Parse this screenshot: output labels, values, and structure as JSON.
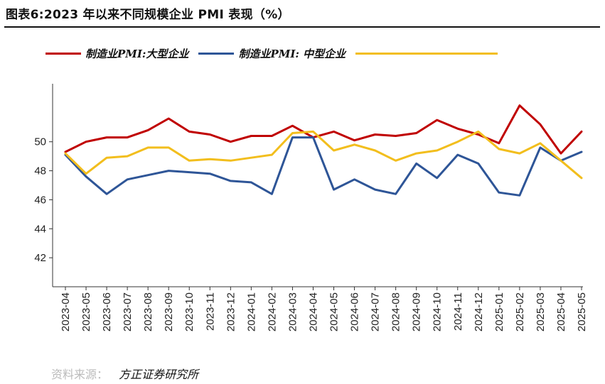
{
  "figure": {
    "title": "图表6:2023 年以来不同规模企业 PMI 表现（%）",
    "source_label": "资料来源：",
    "source": "方正证券研究所"
  },
  "chart_data": {
    "type": "line",
    "categories": [
      "2023-04",
      "2023-05",
      "2023-06",
      "2023-07",
      "2023-08",
      "2023-09",
      "2023-10",
      "2023-11",
      "2023-12",
      "2024-01",
      "2024-02",
      "2024-03",
      "2024-04",
      "2024-05",
      "2024-06",
      "2024-07",
      "2024-08",
      "2024-09",
      "2024-10",
      "2024-11",
      "2024-12",
      "2025-01",
      "2025-02",
      "2025-03",
      "2025-04",
      "2025-05"
    ],
    "series": [
      {
        "name": "制造业PMI:大型企业",
        "color": "#C00000",
        "values": [
          49.3,
          50.0,
          50.3,
          50.3,
          50.8,
          51.6,
          50.7,
          50.5,
          50.0,
          50.4,
          50.4,
          51.1,
          50.3,
          50.7,
          50.1,
          50.5,
          50.4,
          50.6,
          51.5,
          50.9,
          50.5,
          49.9,
          52.5,
          51.2,
          49.2,
          50.7
        ]
      },
      {
        "name": "制造业PMI: 中型企业",
        "color": "#2E5597",
        "values": [
          49.1,
          47.6,
          46.4,
          47.4,
          47.7,
          48.0,
          47.9,
          47.8,
          47.3,
          47.2,
          46.4,
          50.3,
          50.3,
          46.7,
          47.4,
          46.7,
          46.4,
          48.5,
          47.5,
          49.1,
          48.5,
          46.5,
          46.3,
          49.6,
          48.7,
          49.3
        ]
      },
      {
        "name": "",
        "color": "#F2BE1D",
        "values": [
          49.2,
          47.8,
          48.9,
          49.0,
          49.6,
          49.6,
          48.7,
          48.8,
          48.7,
          48.9,
          49.1,
          50.6,
          50.7,
          49.4,
          49.8,
          49.4,
          48.7,
          49.2,
          49.4,
          50.0,
          50.7,
          49.5,
          49.2,
          49.9,
          48.7,
          47.5
        ]
      }
    ],
    "y_ticks": [
      42,
      44,
      46,
      48,
      50
    ],
    "ylim": [
      40,
      54
    ],
    "xlabel": "",
    "ylabel": "",
    "title": "",
    "grid": false,
    "legend_position": "top"
  }
}
